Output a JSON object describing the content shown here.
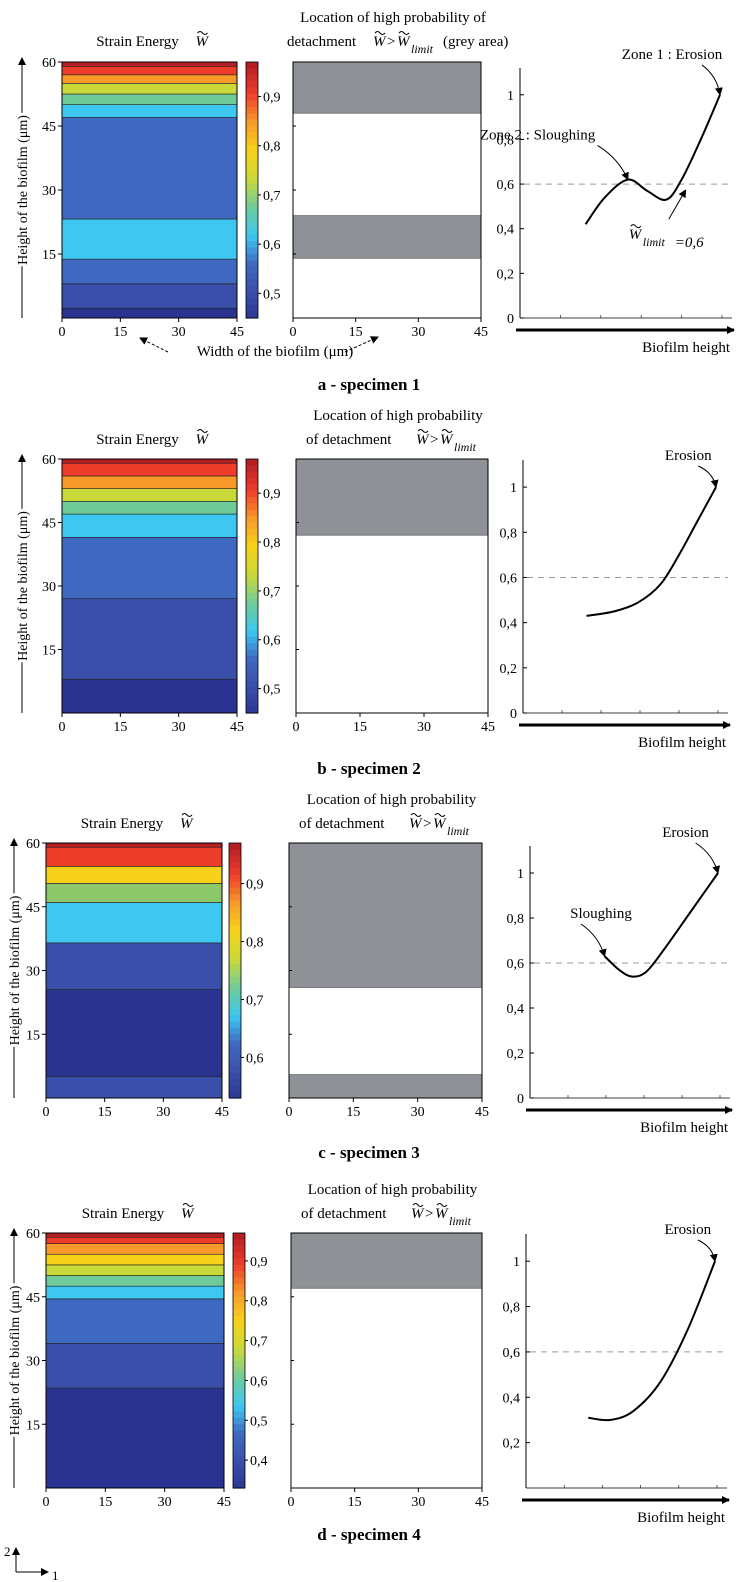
{
  "labels": {
    "strain_energy": "Strain Energy",
    "w_symbol": "W",
    "location_line1_a": "Location of high probability of",
    "location_line2_a": "detachment",
    "grey_area": "(grey area)",
    "location_line1": "Location of high probability",
    "location_line2": "of detachment",
    "gt": ">",
    "limit_sub": "limit",
    "ylabel_height": "Height of the biofilm (μm)",
    "xlabel_width": "Width of the biofilm (μm)",
    "xlabel_curve": "Biofilm height",
    "axis_2": "2",
    "axis_1": "1",
    "w_limit_value": "=0,6"
  },
  "annotations": {
    "zone1": "Zone 1 : Erosion",
    "zone2": "Zone 2 : Sloughing",
    "erosion": "Erosion",
    "sloughing": "Sloughing"
  },
  "colors": {
    "grey_area": "#8e9195",
    "dashed_line": "#9a9a9a",
    "colormap": [
      "#2a3490",
      "#3a4fa9",
      "#3f68c0",
      "#3ec7f0",
      "#6fcc9a",
      "#c9d93a",
      "#f8d21a",
      "#f79a2a",
      "#ee3d2b",
      "#b51f24"
    ]
  },
  "chart_data": [
    {
      "panel": "a",
      "caption": "a - specimen 1",
      "strain_energy": {
        "type": "heatmap",
        "x_ticks": [
          "0",
          "15",
          "30",
          "45"
        ],
        "y_ticks": [
          "15",
          "30",
          "45",
          "60"
        ],
        "xlim": [
          0,
          45
        ],
        "ylim": [
          0,
          60
        ],
        "colorbar_range": [
          0.45,
          0.97
        ],
        "colorbar_ticks": [
          "0,5",
          "0,6",
          "0,7",
          "0,8",
          "0,9"
        ],
        "colorbar_tick_values": [
          0.5,
          0.6,
          0.7,
          0.8,
          0.9
        ],
        "bands": [
          {
            "y0": 0,
            "y1": 2.3,
            "color": "#2a3490"
          },
          {
            "y0": 2.3,
            "y1": 8,
            "color": "#3a4fa9"
          },
          {
            "y0": 8,
            "y1": 13.8,
            "color": "#3f68c0"
          },
          {
            "y0": 13.8,
            "y1": 23.2,
            "color": "#3ec7f0"
          },
          {
            "y0": 23.2,
            "y1": 47,
            "color": "#3f68c0"
          },
          {
            "y0": 47,
            "y1": 50,
            "color": "#3ec7f0"
          },
          {
            "y0": 50,
            "y1": 52.5,
            "color": "#6fcc9a"
          },
          {
            "y0": 52.5,
            "y1": 55,
            "color": "#c9d93a"
          },
          {
            "y0": 55,
            "y1": 57,
            "color": "#f79a2a"
          },
          {
            "y0": 57,
            "y1": 59,
            "color": "#ee3d2b"
          },
          {
            "y0": 59,
            "y1": 60,
            "color": "#b51f24"
          }
        ]
      },
      "detachment": {
        "x_ticks": [
          "0",
          "15",
          "30",
          "45"
        ],
        "xlim": [
          0,
          45
        ],
        "ylim": [
          0,
          60
        ],
        "grey_zones": [
          [
            48,
            60
          ],
          [
            14,
            24
          ]
        ]
      },
      "curve": {
        "type": "line",
        "y_ticks": [
          "0",
          "0,2",
          "0,4",
          "0,6",
          "0,8",
          "1"
        ],
        "y_tick_values": [
          0,
          0.2,
          0.4,
          0.6,
          0.8,
          1.0
        ],
        "ylim": [
          0,
          1.12
        ],
        "xlim": [
          0,
          1
        ],
        "limit": 0.6,
        "points": [
          [
            0.3,
            0.42
          ],
          [
            0.4,
            0.54
          ],
          [
            0.52,
            0.62
          ],
          [
            0.62,
            0.57
          ],
          [
            0.72,
            0.53
          ],
          [
            0.8,
            0.62
          ],
          [
            0.9,
            0.8
          ],
          [
            1.0,
            1.0
          ]
        ],
        "annotations": [
          {
            "key": "zone1",
            "at": [
              1.0,
              1.0
            ],
            "text_at": [
              0.75,
              1.16
            ]
          },
          {
            "key": "zone2",
            "at": [
              0.52,
              0.62
            ],
            "text_at": [
              0.05,
              0.8
            ]
          },
          {
            "key": "wlimit",
            "at": [
              0.8,
              0.6
            ],
            "text_at": [
              0.65,
              0.38
            ]
          }
        ]
      }
    },
    {
      "panel": "b",
      "caption": "b - specimen 2",
      "strain_energy": {
        "type": "heatmap",
        "x_ticks": [
          "0",
          "15",
          "30",
          "45"
        ],
        "y_ticks": [
          "15",
          "30",
          "45",
          "60"
        ],
        "xlim": [
          0,
          45
        ],
        "ylim": [
          0,
          60
        ],
        "colorbar_range": [
          0.45,
          0.97
        ],
        "colorbar_ticks": [
          "0,5",
          "0,6",
          "0,7",
          "0,8",
          "0,9"
        ],
        "colorbar_tick_values": [
          0.5,
          0.6,
          0.7,
          0.8,
          0.9
        ],
        "bands": [
          {
            "y0": 0,
            "y1": 8,
            "color": "#2a3490"
          },
          {
            "y0": 8,
            "y1": 27,
            "color": "#3a4fa9"
          },
          {
            "y0": 27,
            "y1": 41.5,
            "color": "#3f68c0"
          },
          {
            "y0": 41.5,
            "y1": 47,
            "color": "#3ec7f0"
          },
          {
            "y0": 47,
            "y1": 50,
            "color": "#6fcc9a"
          },
          {
            "y0": 50,
            "y1": 53,
            "color": "#c9d93a"
          },
          {
            "y0": 53,
            "y1": 56,
            "color": "#f79a2a"
          },
          {
            "y0": 56,
            "y1": 59,
            "color": "#ee3d2b"
          },
          {
            "y0": 59,
            "y1": 60,
            "color": "#b51f24"
          }
        ]
      },
      "detachment": {
        "x_ticks": [
          "0",
          "15",
          "30",
          "45"
        ],
        "xlim": [
          0,
          45
        ],
        "ylim": [
          0,
          60
        ],
        "grey_zones": [
          [
            42,
            60
          ]
        ]
      },
      "curve": {
        "type": "line",
        "y_ticks": [
          "0",
          "0,2",
          "0,4",
          "0,6",
          "0,8",
          "1"
        ],
        "y_tick_values": [
          0,
          0.2,
          0.4,
          0.6,
          0.8,
          1.0
        ],
        "ylim": [
          0,
          1.12
        ],
        "xlim": [
          0,
          1
        ],
        "limit": 0.6,
        "points": [
          [
            0.3,
            0.43
          ],
          [
            0.45,
            0.45
          ],
          [
            0.58,
            0.49
          ],
          [
            0.7,
            0.57
          ],
          [
            0.8,
            0.7
          ],
          [
            0.9,
            0.85
          ],
          [
            1.0,
            1.0
          ]
        ],
        "annotations": [
          {
            "key": "erosion",
            "at": [
              1.0,
              1.0
            ],
            "text_at": [
              0.85,
              1.12
            ]
          }
        ]
      }
    },
    {
      "panel": "c",
      "caption": "c - specimen 3",
      "strain_energy": {
        "type": "heatmap",
        "x_ticks": [
          "0",
          "15",
          "30",
          "45"
        ],
        "y_ticks": [
          "15",
          "30",
          "45",
          "60"
        ],
        "xlim": [
          0,
          45
        ],
        "ylim": [
          0,
          60
        ],
        "colorbar_range": [
          0.53,
          0.97
        ],
        "colorbar_ticks": [
          "0,6",
          "0,7",
          "0,8",
          "0,9"
        ],
        "colorbar_tick_values": [
          0.6,
          0.7,
          0.8,
          0.9
        ],
        "bands": [
          {
            "y0": 0,
            "y1": 5,
            "color": "#3a4fa9"
          },
          {
            "y0": 5,
            "y1": 25.5,
            "color": "#2a3490"
          },
          {
            "y0": 25.5,
            "y1": 36.5,
            "color": "#3a4fa9"
          },
          {
            "y0": 36.5,
            "y1": 46,
            "color": "#3ec7f0"
          },
          {
            "y0": 46,
            "y1": 50.5,
            "color": "#8cc86a"
          },
          {
            "y0": 50.5,
            "y1": 54.5,
            "color": "#f8d21a"
          },
          {
            "y0": 54.5,
            "y1": 59,
            "color": "#ee3d2b"
          },
          {
            "y0": 59,
            "y1": 60,
            "color": "#b51f24"
          }
        ]
      },
      "detachment": {
        "x_ticks": [
          "0",
          "15",
          "30",
          "45"
        ],
        "xlim": [
          0,
          45
        ],
        "ylim": [
          0,
          60
        ],
        "grey_zones": [
          [
            26,
            60
          ],
          [
            0,
            5.5
          ]
        ]
      },
      "curve": {
        "type": "line",
        "y_ticks": [
          "0",
          "0,2",
          "0,4",
          "0,6",
          "0,8",
          "1"
        ],
        "y_tick_values": [
          0,
          0.2,
          0.4,
          0.6,
          0.8,
          1.0
        ],
        "ylim": [
          0,
          1.12
        ],
        "xlim": [
          0,
          1
        ],
        "limit": 0.6,
        "points": [
          [
            0.37,
            0.63
          ],
          [
            0.45,
            0.57
          ],
          [
            0.52,
            0.54
          ],
          [
            0.6,
            0.56
          ],
          [
            0.7,
            0.66
          ],
          [
            0.85,
            0.83
          ],
          [
            1.0,
            1.0
          ]
        ],
        "annotations": [
          {
            "key": "erosion",
            "at": [
              1.0,
              1.0
            ],
            "text_at": [
              0.82,
              1.16
            ]
          },
          {
            "key": "sloughing",
            "at": [
              0.37,
              0.63
            ],
            "text_at": [
              0.35,
              0.8
            ]
          }
        ]
      }
    },
    {
      "panel": "d",
      "caption": "d - specimen 4",
      "strain_energy": {
        "type": "heatmap",
        "x_ticks": [
          "0",
          "15",
          "30",
          "45"
        ],
        "y_ticks": [
          "15",
          "30",
          "45",
          "60"
        ],
        "xlim": [
          0,
          45
        ],
        "ylim": [
          0,
          60
        ],
        "colorbar_range": [
          0.33,
          0.97
        ],
        "colorbar_ticks": [
          "0,4",
          "0,5",
          "0,6",
          "0,7",
          "0,8",
          "0,9"
        ],
        "colorbar_tick_values": [
          0.4,
          0.5,
          0.6,
          0.7,
          0.8,
          0.9
        ],
        "bands": [
          {
            "y0": 0,
            "y1": 23.5,
            "color": "#2a3490"
          },
          {
            "y0": 23.5,
            "y1": 34,
            "color": "#3a4fa9"
          },
          {
            "y0": 34,
            "y1": 44.5,
            "color": "#3f68c0"
          },
          {
            "y0": 44.5,
            "y1": 47.5,
            "color": "#3ec7f0"
          },
          {
            "y0": 47.5,
            "y1": 50,
            "color": "#6fcc9a"
          },
          {
            "y0": 50,
            "y1": 52.5,
            "color": "#c9d93a"
          },
          {
            "y0": 52.5,
            "y1": 55,
            "color": "#f8d21a"
          },
          {
            "y0": 55,
            "y1": 57.5,
            "color": "#f79a2a"
          },
          {
            "y0": 57.5,
            "y1": 59,
            "color": "#ee3d2b"
          },
          {
            "y0": 59,
            "y1": 60,
            "color": "#b51f24"
          }
        ]
      },
      "detachment": {
        "x_ticks": [
          "0",
          "15",
          "30",
          "45"
        ],
        "xlim": [
          0,
          45
        ],
        "ylim": [
          0,
          60
        ],
        "grey_zones": [
          [
            47,
            60
          ]
        ]
      },
      "curve": {
        "type": "line",
        "y_ticks": [
          "0,2",
          "0,4",
          "0,6",
          "0,8",
          "1"
        ],
        "y_tick_values": [
          0.2,
          0.4,
          0.6,
          0.8,
          1.0
        ],
        "ylim": [
          0,
          1.12
        ],
        "xlim": [
          0,
          1
        ],
        "limit": 0.6,
        "points": [
          [
            0.3,
            0.31
          ],
          [
            0.42,
            0.3
          ],
          [
            0.55,
            0.34
          ],
          [
            0.7,
            0.47
          ],
          [
            0.85,
            0.7
          ],
          [
            1.0,
            1.0
          ]
        ],
        "annotations": [
          {
            "key": "erosion",
            "at": [
              1.0,
              1.0
            ],
            "text_at": [
              0.85,
              1.12
            ]
          }
        ]
      }
    }
  ]
}
